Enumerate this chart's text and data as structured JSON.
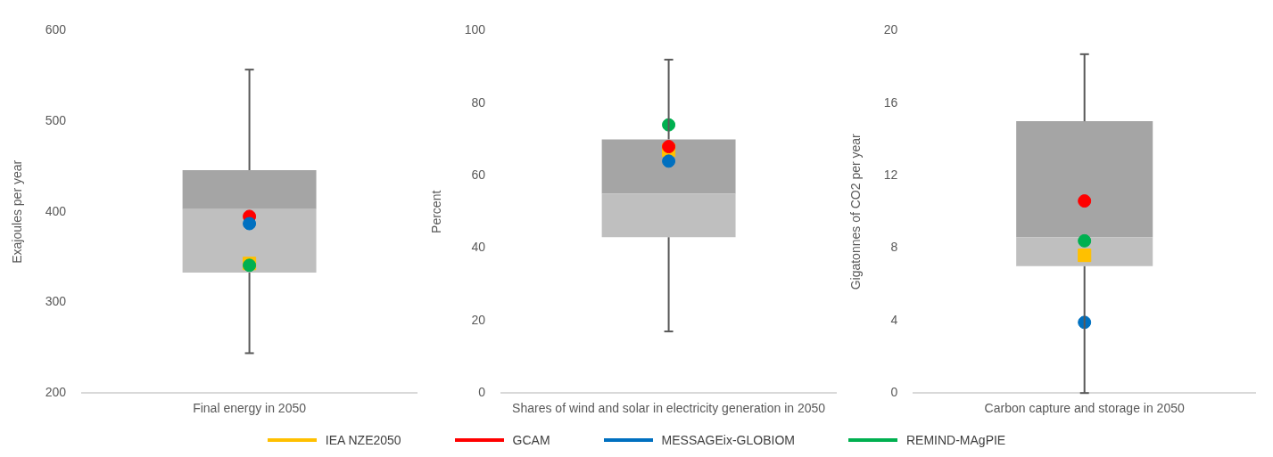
{
  "chart_data": [
    {
      "type": "box",
      "categories": [
        "Final energy in 2050"
      ],
      "ylabel": "Exajoules per year",
      "ylim": [
        200,
        600
      ],
      "yticks": [
        200,
        300,
        400,
        500,
        600
      ],
      "grid": false,
      "legend": "bottom",
      "boxes": [
        {
          "low": 244,
          "q1": 333,
          "median": 403,
          "q3": 446,
          "high": 557
        }
      ],
      "series": [
        {
          "name": "IEA NZE2050",
          "type": "scatter",
          "marker": "square",
          "color": "#ffc000",
          "x": [
            "Final energy in 2050"
          ],
          "values": [
            343
          ]
        },
        {
          "name": "GCAM",
          "type": "scatter",
          "marker": "circle",
          "color": "#ff0000",
          "x": [
            "Final energy in 2050"
          ],
          "values": [
            395
          ]
        },
        {
          "name": "MESSAGEix-GLOBIOM",
          "type": "scatter",
          "marker": "circle",
          "color": "#0070c0",
          "x": [
            "Final energy in 2050"
          ],
          "values": [
            387
          ]
        },
        {
          "name": "REMIND-MAgPIE",
          "type": "scatter",
          "marker": "circle",
          "color": "#00b050",
          "x": [
            "Final energy in 2050"
          ],
          "values": [
            341
          ]
        }
      ]
    },
    {
      "type": "box",
      "categories": [
        "Shares of wind and solar in electricity generation in 2050"
      ],
      "ylabel": "Percent",
      "ylim": [
        0,
        100
      ],
      "yticks": [
        0,
        20,
        40,
        60,
        80,
        100
      ],
      "grid": false,
      "boxes": [
        {
          "low": 17,
          "q1": 43,
          "median": 55,
          "q3": 70,
          "high": 92
        }
      ],
      "series": [
        {
          "type": "scatter",
          "marker": "square",
          "color": "#ffc000",
          "x": [
            "Shares of wind and solar in electricity generation in 2050"
          ],
          "values": [
            67
          ]
        },
        {
          "type": "scatter",
          "marker": "circle",
          "color": "#ff0000",
          "x": [
            "Shares of wind and solar in electricity generation in 2050"
          ],
          "values": [
            68
          ]
        },
        {
          "type": "scatter",
          "marker": "circle",
          "color": "#0070c0",
          "x": [
            "Shares of wind and solar in electricity generation in 2050"
          ],
          "values": [
            64
          ]
        },
        {
          "type": "scatter",
          "marker": "circle",
          "color": "#00b050",
          "x": [
            "Shares of wind and solar in electricity generation in 2050"
          ],
          "values": [
            74
          ]
        }
      ]
    },
    {
      "type": "box",
      "categories": [
        "Carbon capture and storage in 2050"
      ],
      "ylabel": "Gigatonnes of CO2 per year",
      "ylim": [
        0,
        20
      ],
      "yticks": [
        0,
        4,
        8,
        12,
        16,
        20
      ],
      "grid": false,
      "boxes": [
        {
          "low": 0,
          "q1": 7,
          "median": 8.6,
          "q3": 15,
          "high": 18.7
        }
      ],
      "series": [
        {
          "type": "scatter",
          "marker": "square",
          "color": "#ffc000",
          "x": [
            "Carbon capture and storage in 2050"
          ],
          "values": [
            7.6
          ]
        },
        {
          "type": "scatter",
          "marker": "circle",
          "color": "#ff0000",
          "x": [
            "Carbon capture and storage in 2050"
          ],
          "values": [
            10.6
          ]
        },
        {
          "type": "scatter",
          "marker": "circle",
          "color": "#0070c0",
          "x": [
            "Carbon capture and storage in 2050"
          ],
          "values": [
            3.9
          ]
        },
        {
          "type": "scatter",
          "marker": "circle",
          "color": "#00b050",
          "x": [
            "Carbon capture and storage in 2050"
          ],
          "values": [
            8.4
          ]
        }
      ]
    }
  ]
}
